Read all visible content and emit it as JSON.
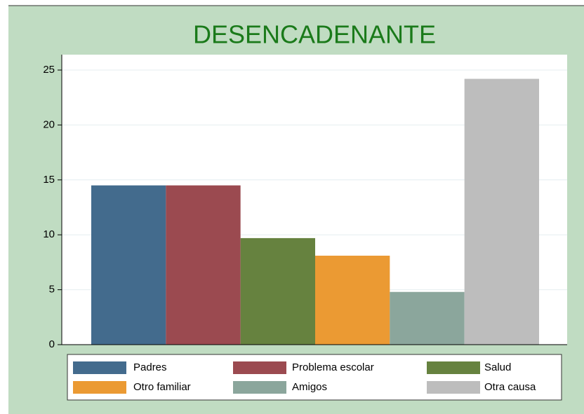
{
  "chart_data": {
    "type": "bar",
    "title": "DESENCADENANTE",
    "series": [
      {
        "name": "Padres",
        "color": "#436b8d",
        "values": [
          14.5
        ]
      },
      {
        "name": "Problema escolar",
        "color": "#9b4a50",
        "values": [
          14.5
        ]
      },
      {
        "name": "Salud",
        "color": "#66823f",
        "values": [
          9.7
        ]
      },
      {
        "name": "Otro familiar",
        "color": "#eb9a33",
        "values": [
          8.1
        ]
      },
      {
        "name": "Amigos",
        "color": "#8ba69c",
        "values": [
          4.8
        ]
      },
      {
        "name": "Otra causa",
        "color": "#bdbdbd",
        "values": [
          24.2
        ]
      }
    ],
    "ylim": [
      0,
      25
    ],
    "yticks": [
      0,
      5,
      10,
      15,
      20,
      25
    ],
    "grid": true
  }
}
